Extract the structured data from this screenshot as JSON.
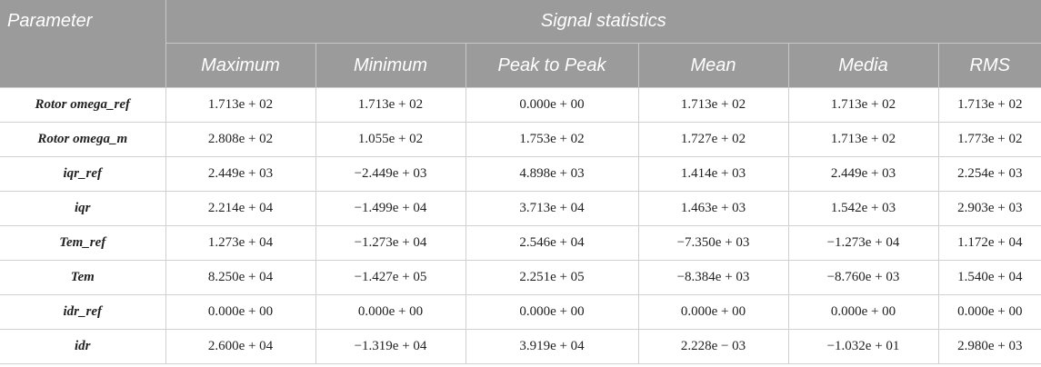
{
  "header": {
    "parameter": "Parameter",
    "group": "Signal statistics",
    "columns": [
      "Maximum",
      "Minimum",
      "Peak to Peak",
      "Mean",
      "Media",
      "RMS"
    ]
  },
  "rows": [
    {
      "name": "Rotor omega_ref",
      "values": [
        "1.713e + 02",
        "1.713e + 02",
        "0.000e + 00",
        "1.713e + 02",
        "1.713e + 02",
        "1.713e + 02"
      ]
    },
    {
      "name": "Rotor omega_m",
      "values": [
        "2.808e + 02",
        "1.055e + 02",
        "1.753e + 02",
        "1.727e + 02",
        "1.713e + 02",
        "1.773e + 02"
      ]
    },
    {
      "name": "iqr_ref",
      "values": [
        "2.449e + 03",
        "−2.449e + 03",
        "4.898e + 03",
        "1.414e + 03",
        "2.449e + 03",
        "2.254e + 03"
      ]
    },
    {
      "name": "iqr",
      "values": [
        "2.214e + 04",
        "−1.499e + 04",
        "3.713e + 04",
        "1.463e + 03",
        "1.542e + 03",
        "2.903e + 03"
      ]
    },
    {
      "name": "Tem_ref",
      "values": [
        "1.273e + 04",
        "−1.273e + 04",
        "2.546e + 04",
        "−7.350e + 03",
        "−1.273e + 04",
        "1.172e + 04"
      ]
    },
    {
      "name": "Tem",
      "values": [
        "8.250e + 04",
        "−1.427e + 05",
        "2.251e + 05",
        "−8.384e + 03",
        "−8.760e + 03",
        "1.540e + 04"
      ]
    },
    {
      "name": "idr_ref",
      "values": [
        "0.000e + 00",
        "0.000e + 00",
        "0.000e + 00",
        "0.000e + 00",
        "0.000e + 00",
        "0.000e + 00"
      ]
    },
    {
      "name": "idr",
      "values": [
        "2.600e + 04",
        "−1.319e + 04",
        "3.919e + 04",
        "2.228e − 03",
        "−1.032e + 01",
        "2.980e + 03"
      ]
    }
  ]
}
